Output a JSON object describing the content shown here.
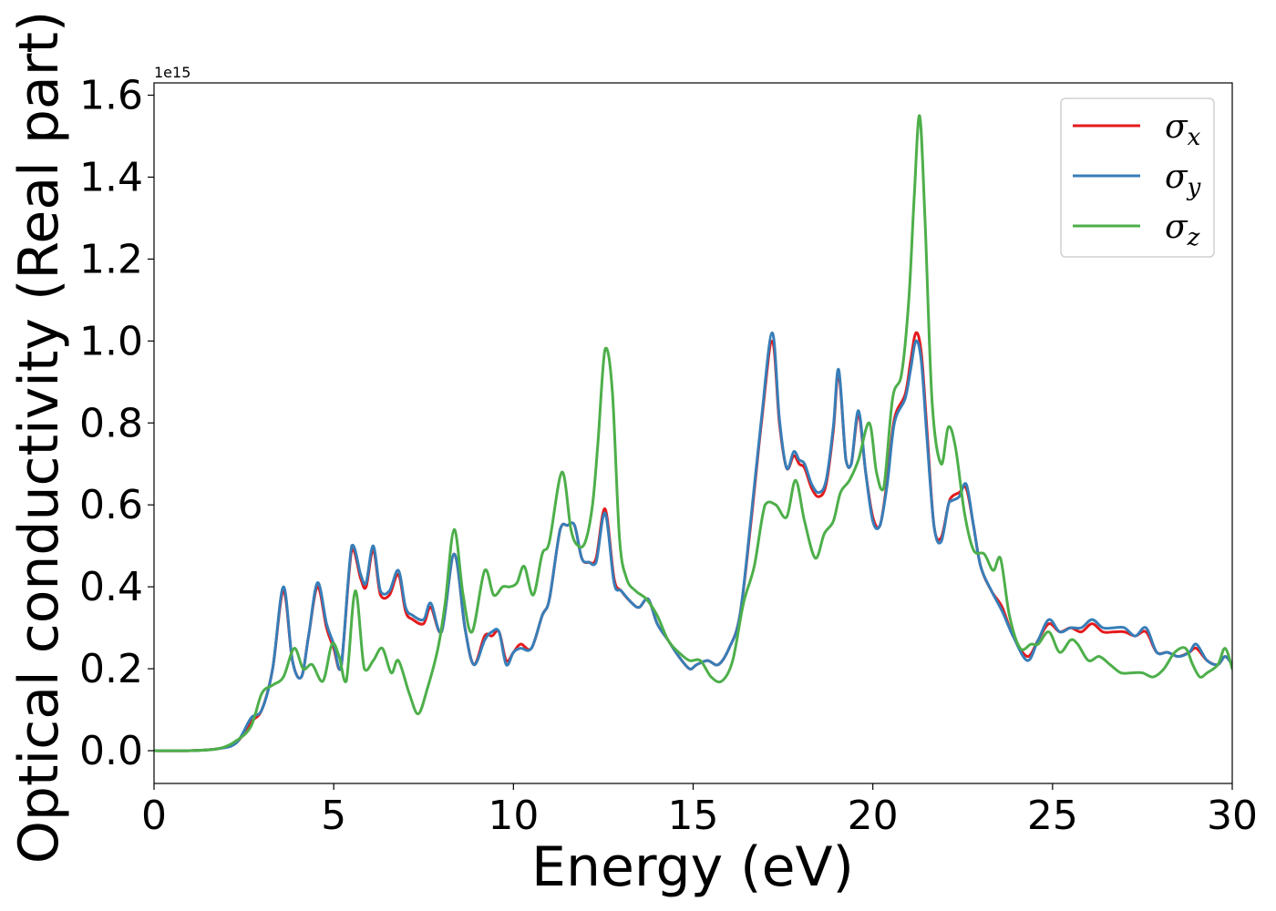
{
  "chart_data": {
    "type": "line",
    "title": "",
    "xlabel": "Energy (eV)",
    "ylabel": "Optical conductivity (Real part)",
    "y_offset_label": "1e15",
    "xlim": [
      0,
      30
    ],
    "ylim": [
      -0.08,
      1.63
    ],
    "xticks": [
      0,
      5,
      10,
      15,
      20,
      25,
      30
    ],
    "xtick_labels": [
      "0",
      "5",
      "10",
      "15",
      "20",
      "25",
      "30"
    ],
    "yticks": [
      0.0,
      0.2,
      0.4,
      0.6,
      0.8,
      1.0,
      1.2,
      1.4,
      1.6
    ],
    "ytick_labels": [
      "0.0",
      "0.2",
      "0.4",
      "0.6",
      "0.8",
      "1.0",
      "1.2",
      "1.4",
      "1.6"
    ],
    "grid": false,
    "legend_position": "top-right",
    "series": [
      {
        "name": "σx",
        "legend_symbol": "σ",
        "legend_subscript": "x",
        "color": "#e41a1c",
        "x": [
          0,
          1,
          1.8,
          2.3,
          2.7,
          3.0,
          3.3,
          3.6,
          3.85,
          4.1,
          4.3,
          4.55,
          4.8,
          5.0,
          5.2,
          5.5,
          5.75,
          5.9,
          6.1,
          6.3,
          6.55,
          6.8,
          7.0,
          7.2,
          7.5,
          7.7,
          8.0,
          8.35,
          8.65,
          8.9,
          9.2,
          9.4,
          9.6,
          9.8,
          10.0,
          10.2,
          10.5,
          10.8,
          11.0,
          11.3,
          11.5,
          11.7,
          11.9,
          12.1,
          12.3,
          12.55,
          12.8,
          13.0,
          13.3,
          13.5,
          13.75,
          14.0,
          14.3,
          14.6,
          14.9,
          15.1,
          15.4,
          15.7,
          16.0,
          16.3,
          16.6,
          16.9,
          17.2,
          17.4,
          17.6,
          17.8,
          17.95,
          18.1,
          18.3,
          18.5,
          18.7,
          18.9,
          19.05,
          19.25,
          19.4,
          19.6,
          19.8,
          20.0,
          20.2,
          20.4,
          20.6,
          20.9,
          21.05,
          21.2,
          21.35,
          21.5,
          21.7,
          21.9,
          22.1,
          22.2,
          22.4,
          22.6,
          22.8,
          23.0,
          23.3,
          23.6,
          23.9,
          24.3,
          24.6,
          24.9,
          25.2,
          25.5,
          25.8,
          26.1,
          26.4,
          26.7,
          27.0,
          27.3,
          27.6,
          27.9,
          28.2,
          28.5,
          28.8,
          29.0,
          29.3,
          29.6,
          29.8,
          30
        ],
        "y": [
          0,
          0,
          0.005,
          0.02,
          0.07,
          0.1,
          0.2,
          0.39,
          0.22,
          0.18,
          0.28,
          0.4,
          0.3,
          0.25,
          0.2,
          0.49,
          0.42,
          0.4,
          0.49,
          0.38,
          0.38,
          0.43,
          0.34,
          0.32,
          0.31,
          0.35,
          0.29,
          0.48,
          0.3,
          0.21,
          0.28,
          0.28,
          0.29,
          0.22,
          0.24,
          0.26,
          0.25,
          0.33,
          0.37,
          0.54,
          0.55,
          0.55,
          0.47,
          0.46,
          0.47,
          0.59,
          0.42,
          0.39,
          0.36,
          0.35,
          0.37,
          0.31,
          0.27,
          0.23,
          0.2,
          0.21,
          0.22,
          0.21,
          0.25,
          0.33,
          0.55,
          0.8,
          1.0,
          0.8,
          0.69,
          0.72,
          0.7,
          0.69,
          0.64,
          0.62,
          0.65,
          0.78,
          0.92,
          0.71,
          0.7,
          0.82,
          0.68,
          0.57,
          0.55,
          0.66,
          0.81,
          0.87,
          0.95,
          1.02,
          0.97,
          0.79,
          0.55,
          0.52,
          0.6,
          0.62,
          0.63,
          0.64,
          0.55,
          0.45,
          0.39,
          0.35,
          0.28,
          0.23,
          0.27,
          0.31,
          0.29,
          0.3,
          0.29,
          0.31,
          0.29,
          0.29,
          0.29,
          0.28,
          0.29,
          0.24,
          0.24,
          0.23,
          0.24,
          0.25,
          0.22,
          0.21,
          0.23,
          0.21
        ]
      },
      {
        "name": "σy",
        "legend_symbol": "σ",
        "legend_subscript": "y",
        "color": "#377eb8",
        "x": [
          0,
          1,
          1.8,
          2.3,
          2.7,
          3.0,
          3.3,
          3.6,
          3.85,
          4.1,
          4.3,
          4.55,
          4.8,
          5.0,
          5.2,
          5.5,
          5.75,
          5.9,
          6.1,
          6.3,
          6.55,
          6.8,
          7.0,
          7.2,
          7.5,
          7.7,
          8.0,
          8.35,
          8.65,
          8.9,
          9.2,
          9.4,
          9.6,
          9.8,
          10.0,
          10.2,
          10.5,
          10.8,
          11.0,
          11.3,
          11.5,
          11.7,
          11.9,
          12.1,
          12.3,
          12.55,
          12.8,
          13.0,
          13.3,
          13.5,
          13.75,
          14.0,
          14.3,
          14.6,
          14.9,
          15.1,
          15.4,
          15.7,
          16.0,
          16.3,
          16.6,
          16.9,
          17.2,
          17.4,
          17.6,
          17.8,
          17.95,
          18.1,
          18.3,
          18.5,
          18.7,
          18.9,
          19.05,
          19.25,
          19.4,
          19.6,
          19.8,
          20.0,
          20.2,
          20.4,
          20.6,
          20.9,
          21.05,
          21.2,
          21.35,
          21.5,
          21.7,
          21.9,
          22.1,
          22.2,
          22.4,
          22.6,
          22.8,
          23.0,
          23.3,
          23.6,
          23.9,
          24.3,
          24.6,
          24.9,
          25.2,
          25.5,
          25.8,
          26.1,
          26.4,
          26.7,
          27.0,
          27.3,
          27.6,
          27.9,
          28.2,
          28.5,
          28.8,
          29.0,
          29.3,
          29.6,
          29.8,
          30
        ],
        "y": [
          0,
          0,
          0.005,
          0.02,
          0.08,
          0.1,
          0.2,
          0.4,
          0.22,
          0.18,
          0.28,
          0.41,
          0.31,
          0.26,
          0.2,
          0.5,
          0.43,
          0.41,
          0.5,
          0.39,
          0.39,
          0.44,
          0.35,
          0.33,
          0.32,
          0.36,
          0.29,
          0.48,
          0.3,
          0.21,
          0.27,
          0.29,
          0.29,
          0.21,
          0.24,
          0.25,
          0.25,
          0.33,
          0.37,
          0.54,
          0.55,
          0.55,
          0.47,
          0.46,
          0.46,
          0.58,
          0.41,
          0.39,
          0.36,
          0.35,
          0.37,
          0.31,
          0.27,
          0.23,
          0.2,
          0.21,
          0.22,
          0.21,
          0.25,
          0.33,
          0.56,
          0.81,
          1.02,
          0.81,
          0.69,
          0.73,
          0.71,
          0.7,
          0.65,
          0.63,
          0.66,
          0.79,
          0.93,
          0.71,
          0.7,
          0.83,
          0.68,
          0.56,
          0.55,
          0.65,
          0.8,
          0.86,
          0.93,
          1.0,
          0.95,
          0.77,
          0.55,
          0.51,
          0.6,
          0.61,
          0.62,
          0.65,
          0.55,
          0.45,
          0.39,
          0.34,
          0.28,
          0.22,
          0.27,
          0.32,
          0.29,
          0.3,
          0.3,
          0.32,
          0.3,
          0.3,
          0.3,
          0.28,
          0.3,
          0.24,
          0.24,
          0.23,
          0.24,
          0.26,
          0.22,
          0.21,
          0.23,
          0.21
        ]
      },
      {
        "name": "σz",
        "legend_symbol": "σ",
        "legend_subscript": "z",
        "color": "#4daf4a",
        "x": [
          0,
          1,
          1.8,
          2.3,
          2.7,
          3.0,
          3.3,
          3.6,
          3.9,
          4.15,
          4.4,
          4.7,
          4.95,
          5.15,
          5.35,
          5.6,
          5.85,
          6.1,
          6.35,
          6.6,
          6.8,
          7.1,
          7.35,
          7.6,
          7.9,
          8.1,
          8.35,
          8.6,
          8.85,
          9.2,
          9.45,
          9.7,
          9.9,
          10.1,
          10.3,
          10.55,
          10.8,
          11.0,
          11.35,
          11.6,
          11.8,
          12.0,
          12.2,
          12.35,
          12.55,
          12.75,
          12.95,
          13.15,
          13.4,
          13.7,
          14.0,
          14.3,
          14.6,
          14.9,
          15.2,
          15.5,
          15.8,
          16.1,
          16.4,
          16.7,
          17.0,
          17.3,
          17.6,
          17.85,
          18.1,
          18.4,
          18.65,
          18.9,
          19.1,
          19.35,
          19.6,
          19.9,
          20.1,
          20.3,
          20.55,
          20.8,
          21.0,
          21.15,
          21.3,
          21.45,
          21.65,
          21.9,
          22.1,
          22.3,
          22.55,
          22.8,
          23.1,
          23.35,
          23.55,
          23.8,
          24.1,
          24.4,
          24.6,
          24.9,
          25.2,
          25.5,
          25.7,
          26.0,
          26.3,
          26.6,
          26.9,
          27.2,
          27.5,
          27.8,
          28.1,
          28.4,
          28.7,
          28.9,
          29.1,
          29.3,
          29.6,
          29.8,
          30
        ],
        "y": [
          0,
          0,
          0.005,
          0.025,
          0.06,
          0.14,
          0.16,
          0.18,
          0.25,
          0.2,
          0.21,
          0.17,
          0.26,
          0.23,
          0.17,
          0.39,
          0.2,
          0.22,
          0.25,
          0.19,
          0.22,
          0.14,
          0.09,
          0.15,
          0.25,
          0.36,
          0.54,
          0.38,
          0.29,
          0.44,
          0.38,
          0.4,
          0.4,
          0.41,
          0.45,
          0.38,
          0.48,
          0.51,
          0.68,
          0.54,
          0.5,
          0.51,
          0.6,
          0.75,
          0.98,
          0.88,
          0.52,
          0.42,
          0.39,
          0.37,
          0.33,
          0.27,
          0.24,
          0.22,
          0.22,
          0.18,
          0.17,
          0.22,
          0.36,
          0.45,
          0.6,
          0.6,
          0.57,
          0.66,
          0.56,
          0.47,
          0.53,
          0.56,
          0.63,
          0.66,
          0.71,
          0.8,
          0.68,
          0.64,
          0.86,
          0.92,
          1.1,
          1.35,
          1.55,
          1.3,
          0.85,
          0.7,
          0.79,
          0.74,
          0.58,
          0.49,
          0.48,
          0.44,
          0.47,
          0.33,
          0.25,
          0.26,
          0.26,
          0.29,
          0.24,
          0.27,
          0.26,
          0.22,
          0.23,
          0.21,
          0.19,
          0.19,
          0.19,
          0.18,
          0.2,
          0.24,
          0.25,
          0.21,
          0.18,
          0.19,
          0.21,
          0.25,
          0.2
        ]
      }
    ]
  }
}
